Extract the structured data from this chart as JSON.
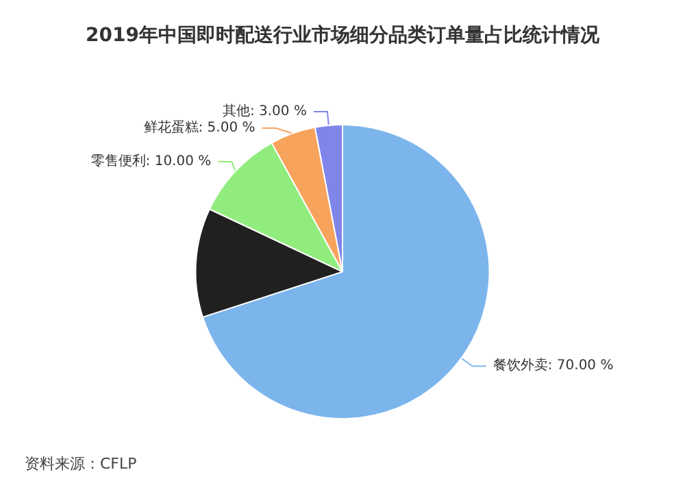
{
  "chart_data": {
    "type": "pie",
    "title": "2019年中国即时配送行业市场细分品类订单量占比统计情况",
    "categories": [
      "餐饮外卖",
      null,
      "零售便利",
      "鲜花蛋糕",
      "其他"
    ],
    "values": [
      70,
      12,
      10,
      5,
      3
    ],
    "value_labels": [
      "70.00 %",
      null,
      "10.00 %",
      "5.00 %",
      "3.00 %"
    ],
    "colors": [
      "#7cb5ec",
      "#202020",
      "#90ed7d",
      "#f7a35c",
      "#8085e9"
    ],
    "legend": false,
    "annotations": [
      "资料来源：CFLP"
    ]
  }
}
